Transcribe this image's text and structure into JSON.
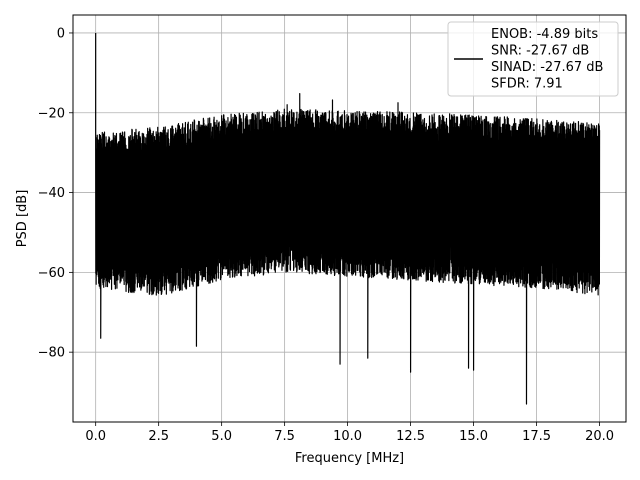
{
  "chart_data": {
    "type": "line",
    "xlabel": "Frequency [MHz]",
    "ylabel": "PSD [dB]",
    "xlim": [
      -0.9,
      21.05
    ],
    "ylim": [
      -97.5,
      4.5
    ],
    "xticks": [
      0.0,
      2.5,
      5.0,
      7.5,
      10.0,
      12.5,
      15.0,
      17.5,
      20.0
    ],
    "xtick_labels": [
      "0.0",
      "2.5",
      "5.0",
      "7.5",
      "10.0",
      "12.5",
      "15.0",
      "17.5",
      "20.0"
    ],
    "yticks": [
      0,
      -20,
      -40,
      -60,
      -80
    ],
    "ytick_labels": [
      "0",
      "−20",
      "−40",
      "−60",
      "−80"
    ],
    "grid": true,
    "legend": {
      "placement": "top-right",
      "lines": [
        "ENOB: -4.89 bits",
        "SNR: -27.67 dB",
        "SINAD: -27.67 dB",
        "SFDR: 7.91"
      ]
    },
    "series": [
      {
        "color": "#000000",
        "x_range": [
          0.0,
          20.0
        ],
        "fundamental": {
          "x": 0.0,
          "y": 0.0
        },
        "envelope": {
          "upper": [
            [
              0.0,
              -25
            ],
            [
              2.5,
              -23.5
            ],
            [
              5.0,
              -20.5
            ],
            [
              7.5,
              -19.0
            ],
            [
              10.0,
              -19.5
            ],
            [
              12.5,
              -19.8
            ],
            [
              15.0,
              -20.5
            ],
            [
              17.5,
              -21.5
            ],
            [
              20.0,
              -22.5
            ]
          ],
          "lower": [
            [
              0.0,
              -64
            ],
            [
              2.5,
              -66
            ],
            [
              5.0,
              -62
            ],
            [
              7.5,
              -60
            ],
            [
              10.0,
              -61
            ],
            [
              12.5,
              -62
            ],
            [
              15.0,
              -63
            ],
            [
              17.5,
              -64
            ],
            [
              20.0,
              -66
            ]
          ]
        },
        "notable_peaks": [
          [
            7.6,
            -18
          ],
          [
            8.1,
            -15.2
          ],
          [
            9.4,
            -16.8
          ],
          [
            12.0,
            -17.5
          ]
        ],
        "notable_dips": [
          [
            0.2,
            -76.5
          ],
          [
            4.0,
            -78.5
          ],
          [
            9.7,
            -83.0
          ],
          [
            10.8,
            -81.5
          ],
          [
            12.5,
            -85.0
          ],
          [
            14.8,
            -84.0
          ],
          [
            15.0,
            -84.5
          ],
          [
            17.1,
            -93.0
          ]
        ]
      }
    ]
  }
}
